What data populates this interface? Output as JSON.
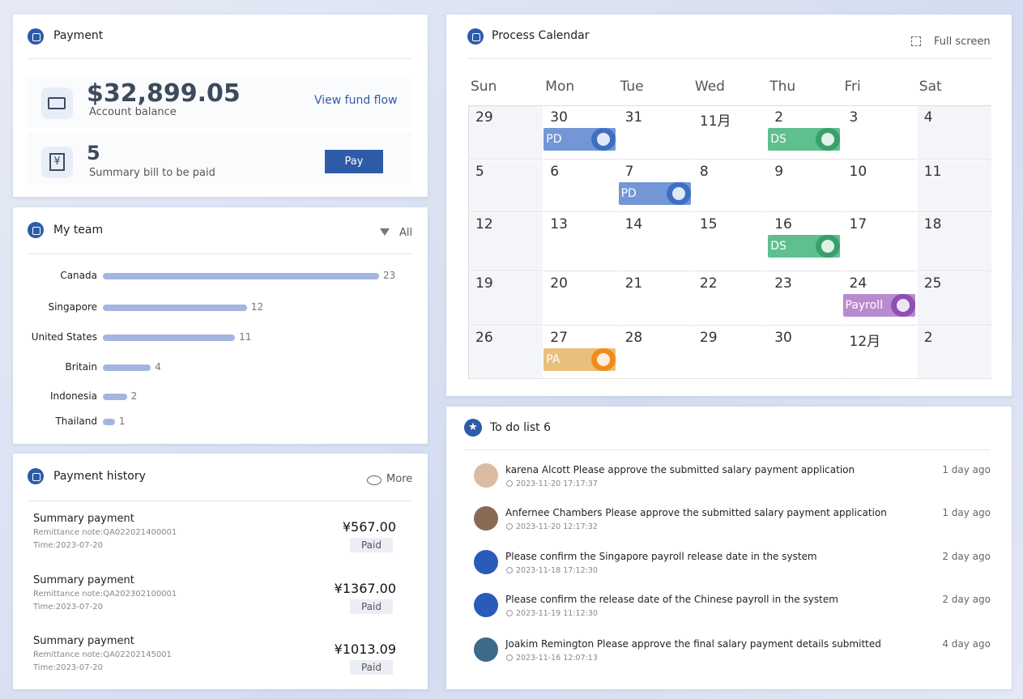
{
  "payment": {
    "title": "Payment",
    "balance": "$32,899.05",
    "balance_label": "Account balance",
    "fund_flow": "View fund flow",
    "bills": "5",
    "bills_label": "Summary bill to be paid",
    "pay": "Pay"
  },
  "team": {
    "title": "My team",
    "filter": "All",
    "chart_data": {
      "type": "bar",
      "orientation": "horizontal",
      "categories": [
        "Canada",
        "Singapore",
        "United States",
        "Britain",
        "Indonesia",
        "Thailand"
      ],
      "values": [
        23,
        12,
        11,
        4,
        2,
        1
      ],
      "color": "#a3b5e0"
    }
  },
  "history": {
    "title": "Payment history",
    "more": "More",
    "items": [
      {
        "title": "Summary payment",
        "note": "Remittance note:QA022021400001",
        "time": "Time:2023-07-20",
        "amount": "¥567.00",
        "status": "Paid"
      },
      {
        "title": "Summary payment",
        "note": "Remittance note:QA202302100001",
        "time": "Time:2023-07-20",
        "amount": "¥1367.00",
        "status": "Paid"
      },
      {
        "title": "Summary payment",
        "note": "Remittance note:QA02202145001",
        "time": "Time:2023-07-20",
        "amount": "¥1013.09",
        "status": "Paid"
      }
    ]
  },
  "calendar": {
    "title": "Process Calendar",
    "fullscreen": "Full screen",
    "weekdays": [
      "Sun",
      "Mon",
      "Tue",
      "Wed",
      "Thu",
      "Fri",
      "Sat"
    ],
    "weeks": [
      [
        {
          "day": "29"
        },
        {
          "day": "30",
          "event": {
            "label": "PD",
            "color": "#7397d6",
            "badge_color": "#3f6fc0"
          }
        },
        {
          "day": "31"
        },
        {
          "day": "11月"
        },
        {
          "day": "2",
          "event": {
            "label": "DS",
            "color": "#5fbf8f",
            "badge_color": "#3aa06b"
          }
        },
        {
          "day": "3"
        },
        {
          "day": "4"
        }
      ],
      [
        {
          "day": "5"
        },
        {
          "day": "6"
        },
        {
          "day": "7",
          "event": {
            "label": "PD",
            "color": "#7397d6",
            "badge_color": "#3f6fc0"
          }
        },
        {
          "day": "8"
        },
        {
          "day": "9"
        },
        {
          "day": "10"
        },
        {
          "day": "11"
        }
      ],
      [
        {
          "day": "12"
        },
        {
          "day": "13"
        },
        {
          "day": "14"
        },
        {
          "day": "15"
        },
        {
          "day": "16",
          "event": {
            "label": "DS",
            "color": "#5fbf8f",
            "badge_color": "#3aa06b"
          }
        },
        {
          "day": "17"
        },
        {
          "day": "18"
        }
      ],
      [
        {
          "day": "19"
        },
        {
          "day": "20"
        },
        {
          "day": "21"
        },
        {
          "day": "22"
        },
        {
          "day": "23"
        },
        {
          "day": "24",
          "event": {
            "label": "Payroll",
            "color": "#b98ad0",
            "badge_color": "#8e4fb3"
          }
        },
        {
          "day": "25"
        }
      ],
      [
        {
          "day": "26"
        },
        {
          "day": "27",
          "event": {
            "label": "PA",
            "color": "#e9bf7d",
            "badge_color": "#f08c1c"
          }
        },
        {
          "day": "28"
        },
        {
          "day": "29"
        },
        {
          "day": "30"
        },
        {
          "day": "12月"
        },
        {
          "day": "2"
        }
      ]
    ]
  },
  "todo": {
    "title": "To do list",
    "count": 6,
    "items": [
      {
        "text": "karena Alcott Please approve the submitted salary payment application",
        "time": "2023-11-20 17:17:37",
        "ago": "1 day ago",
        "avatar_color": "#dcbba4"
      },
      {
        "text": "Anfernee Chambers Please approve the submitted salary payment application",
        "time": "2023-11-20 12:17:32",
        "ago": "1 day ago",
        "avatar_color": "#8a6a55"
      },
      {
        "text": "Please confirm the Singapore payroll release date in the system",
        "time": "2023-11-18 17:12:30",
        "ago": "2 day ago",
        "avatar_color": "#2a5bb8"
      },
      {
        "text": "Please confirm the release date of the Chinese payroll in the system",
        "time": "2023-11-19 11:12:30",
        "ago": "2 day ago",
        "avatar_color": "#2a5bb8"
      },
      {
        "text": "Joakim Remington Please approve the final salary payment details submitted",
        "time": "2023-11-16 12:07:13",
        "ago": "4 day ago",
        "avatar_color": "#3d6a8a"
      }
    ]
  }
}
